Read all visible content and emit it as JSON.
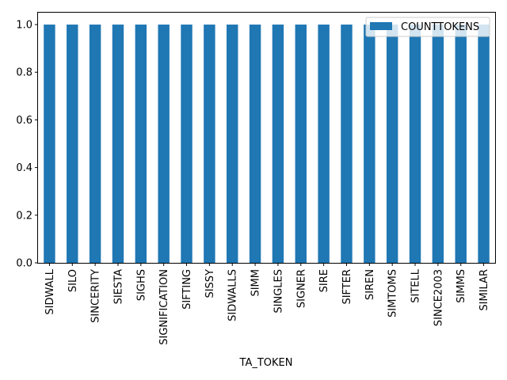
{
  "chart_data": {
    "type": "bar",
    "xlabel": "TA_TOKEN",
    "ylabel": "",
    "ylim": [
      0,
      1.05
    ],
    "yticks": [
      "0.0",
      "0.2",
      "0.4",
      "0.6",
      "0.8",
      "1.0"
    ],
    "categories": [
      "SIDWALL",
      "SILO",
      "SINCERITY",
      "SIESTA",
      "SIGHS",
      "SIGNIFICATION",
      "SIFTING",
      "SISSY",
      "SIDWALLS",
      "SIMM",
      "SINGLES",
      "SIGNER",
      "SIRE",
      "SIFTER",
      "SIREN",
      "SIMTOMS",
      "SITELL",
      "SINCE2003",
      "SIMMS",
      "SIMILAR"
    ],
    "series": [
      {
        "name": "COUNTTOKENS",
        "values": [
          1,
          1,
          1,
          1,
          1,
          1,
          1,
          1,
          1,
          1,
          1,
          1,
          1,
          1,
          1,
          1,
          1,
          1,
          1,
          1
        ]
      }
    ],
    "legend_position": "top-right",
    "grid": false,
    "bar_color": "#1f77b4"
  }
}
